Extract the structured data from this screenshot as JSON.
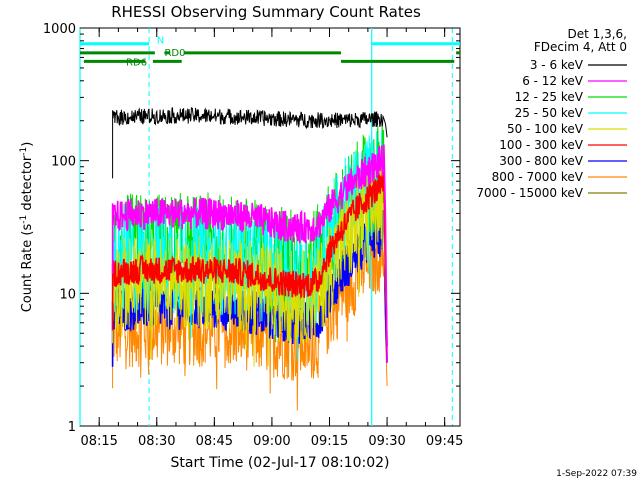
{
  "chart_data": {
    "type": "line",
    "title": "RHESSI Observing Summary Count Rates",
    "xlabel": "Start Time (02-Jul-17 08:10:02)",
    "ylabel_main": "Count Rate (s",
    "ylabel_sup1": "-1",
    "ylabel_mid": " detector",
    "ylabel_sup2": "-1",
    "ylabel_end": ")",
    "yscale": "log",
    "ylim": [
      1,
      1000
    ],
    "xlim_minutes": [
      490.0,
      589.0
    ],
    "y_ticks": [
      {
        "v": 1,
        "label": "1"
      },
      {
        "v": 10,
        "label": "10"
      },
      {
        "v": 100,
        "label": "100"
      },
      {
        "v": 1000,
        "label": "1000"
      }
    ],
    "x_ticks": [
      {
        "v": 495,
        "label": "08:15"
      },
      {
        "v": 510,
        "label": "08:30"
      },
      {
        "v": 525,
        "label": "08:45"
      },
      {
        "v": 540,
        "label": "09:00"
      },
      {
        "v": 555,
        "label": "09:15"
      },
      {
        "v": 570,
        "label": "09:30"
      },
      {
        "v": 585,
        "label": "09:45"
      }
    ],
    "legend_header": [
      "Det 1,3,6,",
      "FDecim 4, Att 0"
    ],
    "legend_position": "right",
    "series": [
      {
        "name": "3 - 6 keV",
        "color": "#000000",
        "base": 210,
        "noise": 0.02,
        "rise": 0.0,
        "drop_to": 150
      },
      {
        "name": "6 - 12 keV",
        "color": "#ff00ff",
        "base": 40,
        "noise": 0.04,
        "rise": 0.18,
        "drop_to": 3
      },
      {
        "name": "12 - 25 keV",
        "color": "#00dd00",
        "base": 22,
        "noise": 0.14,
        "rise": 0.3,
        "drop_to": 5
      },
      {
        "name": "25 - 50 keV",
        "color": "#00ffff",
        "base": 18,
        "noise": 0.14,
        "rise": 0.4,
        "drop_to": 5
      },
      {
        "name": "50 - 100 keV",
        "color": "#dddd00",
        "base": 12,
        "noise": 0.12,
        "rise": 0.35,
        "drop_to": 4
      },
      {
        "name": "100 - 300 keV",
        "color": "#ff0000",
        "base": 15,
        "noise": 0.035,
        "rise": 0.4,
        "drop_to": 4
      },
      {
        "name": "300 - 800 keV",
        "color": "#0000ff",
        "base": 8,
        "noise": 0.06,
        "rise": 0.32,
        "drop_to": 3
      },
      {
        "name": "800 - 7000 keV",
        "color": "#ff8800",
        "base": 5.5,
        "noise": 0.1,
        "rise": 0.33,
        "drop_to": 2
      },
      {
        "name": "7000 - 15000 keV",
        "color": "#808000",
        "base": 0,
        "noise": 0,
        "rise": 0,
        "drop_to": 0
      }
    ],
    "data_start_minutes": 498.5,
    "data_end_minutes": 570.0,
    "dip_center_minutes": 547.0,
    "rise_start_minutes": 552.0,
    "solid_vlines": [
      {
        "x": 490.0,
        "color": "#00ffff"
      },
      {
        "x": 566.0,
        "color": "#00ffff"
      }
    ],
    "dashed_vlines": [
      {
        "x": 508.0,
        "color": "#00ffff"
      },
      {
        "x": 587.0,
        "color": "#00ffff"
      }
    ],
    "flag_bars": [
      {
        "row": "N",
        "color": "#00ffff",
        "segments": [
          [
            490.0,
            508.0
          ],
          [
            566.0,
            589.0
          ]
        ],
        "y_val": 760
      },
      {
        "row": "RD0",
        "color": "#008800",
        "segments": [
          [
            490.0,
            509.5
          ],
          [
            512.0,
            513.5
          ],
          [
            517.0,
            558.0
          ],
          [
            588.0,
            589.0
          ]
        ],
        "y_val": 650
      },
      {
        "row": "RD6",
        "color": "#008800",
        "segments": [
          [
            491.0,
            507.0
          ],
          [
            509.0,
            516.5
          ],
          [
            558.0,
            587.5
          ]
        ],
        "y_val": 560
      }
    ],
    "flag_labels": [
      {
        "text": "N",
        "x": 510.0,
        "y_val": 820,
        "color": "#00ffff"
      },
      {
        "text": "RD0",
        "x": 512.0,
        "y_val": 660,
        "color": "#008800"
      },
      {
        "text": "RD6",
        "x": 502.0,
        "y_val": 560,
        "color": "#008800"
      }
    ]
  },
  "footer": {
    "date": "1-Sep-2022 07:39"
  }
}
